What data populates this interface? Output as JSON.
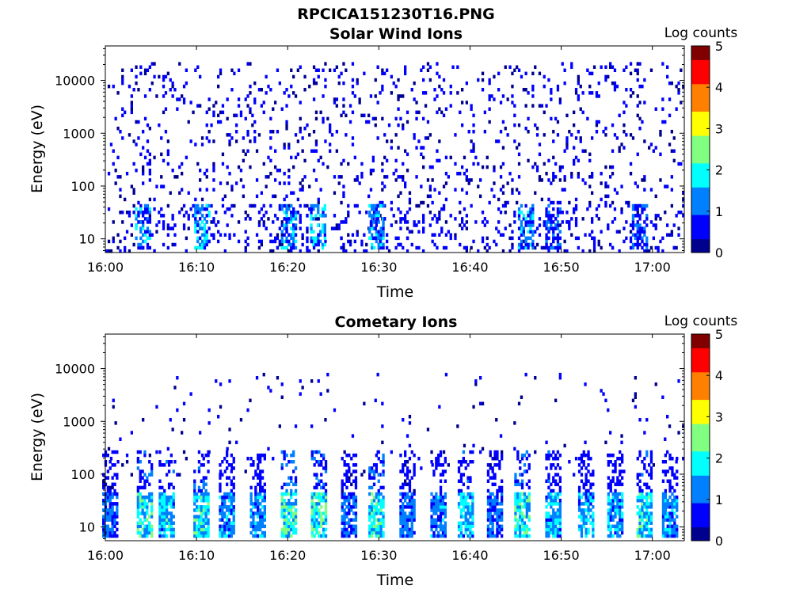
{
  "figure_title": "RPCICA151230T16.PNG",
  "colormap": [
    "#00008f",
    "#0000ff",
    "#0080ff",
    "#00ffff",
    "#80ff80",
    "#ffff00",
    "#ff8000",
    "#ff0000",
    "#800000"
  ],
  "chart_data": [
    {
      "type": "heatmap",
      "title": "Solar Wind Ions",
      "xlabel": "Time",
      "ylabel": "Energy (eV)",
      "x_unit": "minutes after 16:00",
      "xlim": [
        0,
        63.5
      ],
      "ylim": [
        5.5,
        45000
      ],
      "y_scale": "log",
      "x_ticks": [
        "16:00",
        "16:10",
        "16:20",
        "16:30",
        "16:40",
        "16:50",
        "17:00"
      ],
      "y_ticks": [
        "10",
        "100",
        "1000",
        "10000"
      ],
      "colorbar": {
        "label": "Log counts",
        "range": [
          0,
          5
        ],
        "ticks": [
          "0",
          "1",
          "2",
          "3",
          "4",
          "5"
        ]
      },
      "low_energy_bursts": [
        {
          "t": 4.0,
          "log_counts": 1.8
        },
        {
          "t": 10.5,
          "log_counts": 2.0
        },
        {
          "t": 20.0,
          "log_counts": 1.8
        },
        {
          "t": 23.2,
          "log_counts": 2.0
        },
        {
          "t": 29.6,
          "log_counts": 2.0
        },
        {
          "t": 46.0,
          "log_counts": 1.8
        },
        {
          "t": 49.0,
          "log_counts": 1.5
        },
        {
          "t": 58.5,
          "log_counts": 1.3
        }
      ],
      "sparse_counts": {
        "energy_range": [
          6,
          20000
        ],
        "log_counts": 0.2,
        "note": "scattered single counts across all times"
      }
    },
    {
      "type": "heatmap",
      "title": "Cometary Ions",
      "xlabel": "Time",
      "ylabel": "Energy (eV)",
      "x_unit": "minutes after 16:00",
      "xlim": [
        0,
        63.5
      ],
      "ylim": [
        5.5,
        45000
      ],
      "y_scale": "log",
      "x_ticks": [
        "16:00",
        "16:10",
        "16:20",
        "16:30",
        "16:40",
        "16:50",
        "17:00"
      ],
      "y_ticks": [
        "10",
        "100",
        "1000",
        "10000"
      ],
      "colorbar": {
        "label": "Log counts",
        "range": [
          0,
          5
        ],
        "ticks": [
          "0",
          "1",
          "2",
          "3",
          "4",
          "5"
        ]
      },
      "periodic_bursts": [
        {
          "t": 0.4,
          "log_counts": 1.4
        },
        {
          "t": 4.2,
          "log_counts": 2.5
        },
        {
          "t": 6.6,
          "log_counts": 2.2
        },
        {
          "t": 10.4,
          "log_counts": 2.6
        },
        {
          "t": 13.2,
          "log_counts": 1.8
        },
        {
          "t": 16.6,
          "log_counts": 1.8
        },
        {
          "t": 20.0,
          "log_counts": 2.8
        },
        {
          "t": 23.3,
          "log_counts": 2.8
        },
        {
          "t": 26.6,
          "log_counts": 1.5
        },
        {
          "t": 29.6,
          "log_counts": 2.6
        },
        {
          "t": 33.0,
          "log_counts": 1.5
        },
        {
          "t": 36.4,
          "log_counts": 1.6
        },
        {
          "t": 39.4,
          "log_counts": 2.2
        },
        {
          "t": 42.6,
          "log_counts": 1.4
        },
        {
          "t": 45.6,
          "log_counts": 2.6
        },
        {
          "t": 49.0,
          "log_counts": 2.2
        },
        {
          "t": 52.6,
          "log_counts": 2.0
        },
        {
          "t": 55.8,
          "log_counts": 2.0
        },
        {
          "t": 59.0,
          "log_counts": 2.4
        },
        {
          "t": 61.8,
          "log_counts": 1.8
        }
      ],
      "burst_energy_range": [
        7,
        250
      ],
      "sparse_counts": {
        "energy_range": [
          100,
          8000
        ],
        "log_counts": 0.2
      }
    }
  ]
}
